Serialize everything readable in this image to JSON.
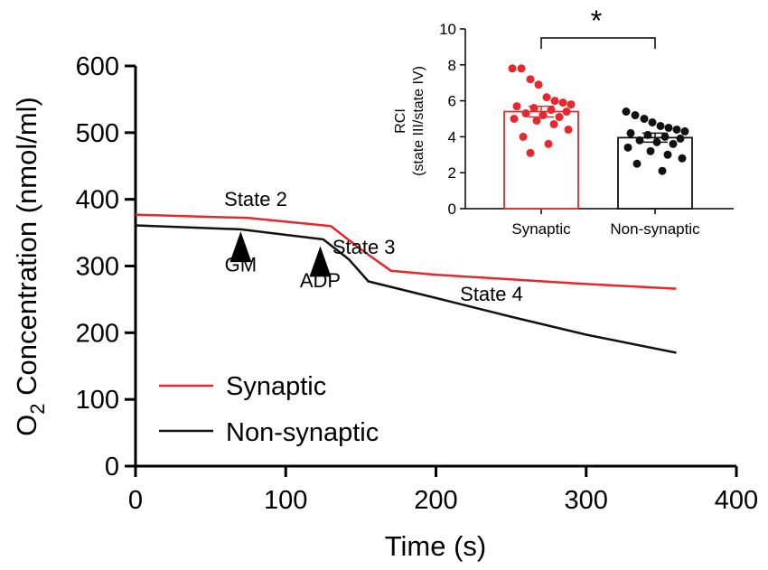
{
  "chart_data": [
    {
      "type": "line",
      "xlabel": "Time (s)",
      "ylabel_main": "O",
      "ylabel_sub": "2",
      "ylabel_rest": " Concentration (nmol/ml)",
      "xlim": [
        0,
        400
      ],
      "ylim": [
        0,
        600
      ],
      "xticks": [
        0,
        100,
        200,
        300,
        400
      ],
      "yticks": [
        0,
        100,
        200,
        300,
        400,
        500,
        600
      ],
      "series": [
        {
          "name": "Synaptic",
          "color": "#e8262b",
          "points": [
            [
              0,
              377
            ],
            [
              75,
              372
            ],
            [
              130,
              360
            ],
            [
              150,
              325
            ],
            [
              170,
              293
            ],
            [
              200,
              287
            ],
            [
              250,
              280
            ],
            [
              300,
              273
            ],
            [
              360,
              266
            ]
          ]
        },
        {
          "name": "Non-synaptic",
          "color": "#111111",
          "points": [
            [
              0,
              361
            ],
            [
              70,
              355
            ],
            [
              125,
              340
            ],
            [
              142,
              310
            ],
            [
              155,
              277
            ],
            [
              200,
              252
            ],
            [
              250,
              224
            ],
            [
              300,
              197
            ],
            [
              360,
              170
            ]
          ]
        }
      ],
      "legend": [
        {
          "label": "Synaptic",
          "color": "#e8262b"
        },
        {
          "label": "Non-synaptic",
          "color": "#111111"
        }
      ],
      "annotations": [
        {
          "text": "State 2",
          "x": 80,
          "y": 390
        },
        {
          "text": "State 3",
          "x": 152,
          "y": 318
        },
        {
          "text": "State 4",
          "x": 237,
          "y": 248
        },
        {
          "text": "GM",
          "x": 70,
          "y": 292,
          "marker_x": 70,
          "marker_y": 352
        },
        {
          "text": "ADP",
          "x": 123,
          "y": 268,
          "marker_x": 123,
          "marker_y": 330
        }
      ]
    },
    {
      "type": "bar",
      "ylabel_line1": "RCI",
      "ylabel_line2": "(state III/state IV)",
      "ylim": [
        0,
        10
      ],
      "yticks": [
        0,
        2,
        4,
        6,
        8,
        10
      ],
      "categories": [
        "Synaptic",
        "Non-synaptic"
      ],
      "values": [
        5.4,
        3.95
      ],
      "errors": [
        0.3,
        0.25
      ],
      "colors": [
        "#e8262b",
        "#111111"
      ],
      "points": [
        [
          7.8,
          7.8,
          7.2,
          6.9,
          6.2,
          6.0,
          5.9,
          5.8,
          5.7,
          5.6,
          5.5,
          5.4,
          5.3,
          5.2,
          5.1,
          5.0,
          4.9,
          4.7,
          4.4,
          4.0,
          3.6,
          3.1
        ],
        [
          5.4,
          5.2,
          5.0,
          4.8,
          4.6,
          4.5,
          4.4,
          4.3,
          4.2,
          4.1,
          4.0,
          3.9,
          3.8,
          3.7,
          3.6,
          3.4,
          3.2,
          3.0,
          2.8,
          2.5,
          2.1
        ]
      ],
      "significance": "*"
    }
  ]
}
